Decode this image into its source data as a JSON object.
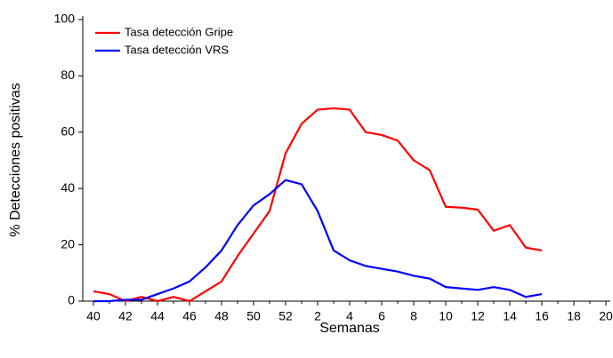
{
  "chart_data": {
    "type": "line",
    "xlabel": "Semanas",
    "ylabel": "% Detecciones positivas",
    "categories": [
      "40",
      null,
      "42",
      null,
      "44",
      null,
      "46",
      null,
      "48",
      null,
      "50",
      null,
      "52",
      null,
      "2",
      null,
      "4",
      null,
      "6",
      null,
      "8",
      null,
      "10",
      null,
      "12",
      null,
      "14",
      null,
      "16",
      null,
      "18",
      null,
      "20"
    ],
    "series": [
      {
        "name": "Tasa detección Gripe",
        "color": "#ff0000",
        "values": [
          3.5,
          2.5,
          0,
          1.5,
          0,
          1.5,
          0,
          3.5,
          7,
          16,
          24,
          32,
          52.5,
          63,
          68,
          68.5,
          68,
          60,
          59,
          57,
          50,
          46.5,
          33.5,
          33.2,
          32.5,
          25,
          27,
          19,
          18,
          null,
          null,
          null,
          null
        ]
      },
      {
        "name": "Tasa detección VRS",
        "color": "#0000ff",
        "values": [
          0,
          0,
          0.5,
          0.5,
          2.5,
          4.5,
          7,
          12,
          18,
          27,
          34,
          38,
          43,
          41.5,
          32,
          18,
          14.5,
          12.5,
          11.5,
          10.5,
          9,
          8,
          5,
          4.5,
          4,
          5,
          4,
          1.5,
          2.5,
          null,
          null,
          null,
          null
        ]
      }
    ],
    "ylim": [
      0,
      100
    ],
    "yticks": [
      0,
      20,
      40,
      60,
      80,
      100
    ],
    "grid": false,
    "legend": "upper left"
  }
}
